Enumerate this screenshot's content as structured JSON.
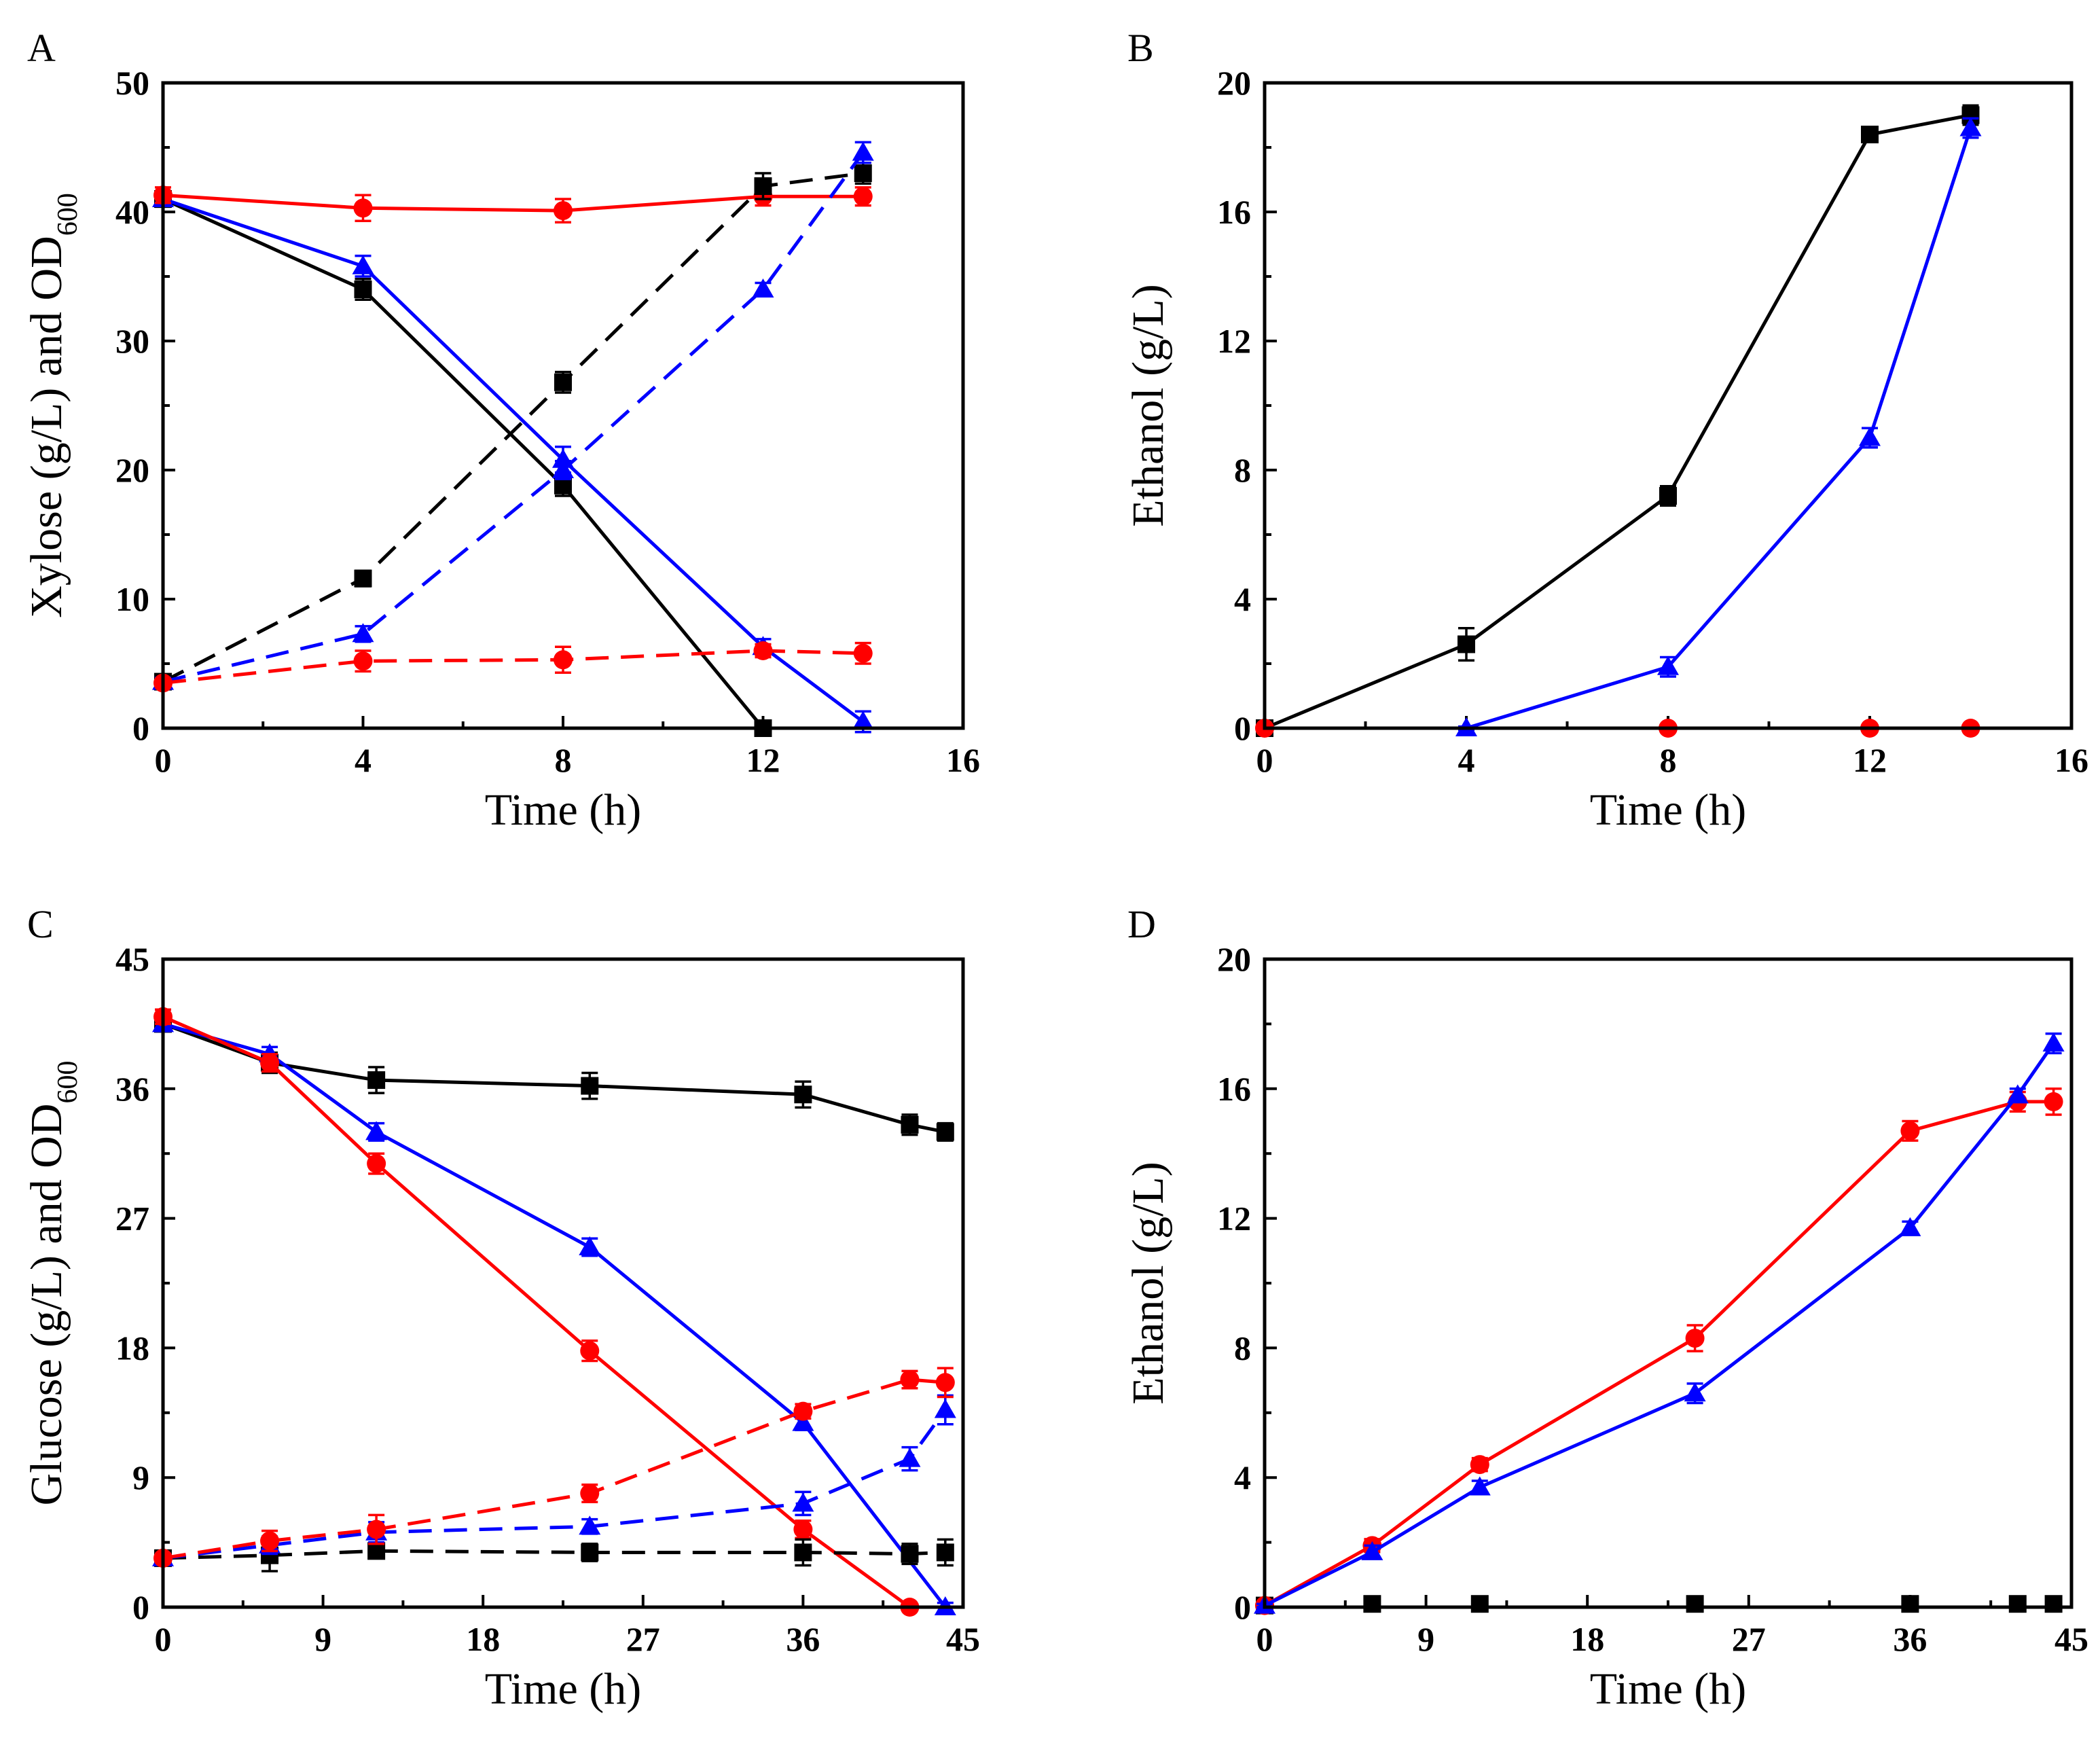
{
  "chart_data": [
    {
      "type": "line",
      "panel": "A",
      "title": "",
      "xlabel": "Time (h)",
      "ylabel": "Xylose (g/L) and OD",
      "ylabel_sub": "600",
      "xlim": [
        0,
        16
      ],
      "ylim": [
        0,
        50
      ],
      "xticks": [
        0,
        4,
        8,
        12,
        16
      ],
      "yticks": [
        0,
        10,
        20,
        30,
        40,
        50
      ],
      "series": [
        {
          "name": "black-xylose",
          "color": "#000000",
          "marker": "square",
          "dash": false,
          "x": [
            0,
            4,
            8,
            12
          ],
          "y": [
            41,
            34,
            18.8,
            0
          ],
          "err": [
            0.6,
            0.8,
            0.8,
            0.3
          ]
        },
        {
          "name": "blue-xylose",
          "color": "#0000ff",
          "marker": "triangle",
          "dash": false,
          "x": [
            0,
            4,
            8,
            12,
            14
          ],
          "y": [
            41,
            35.8,
            20.8,
            6.3,
            0.5
          ],
          "err": [
            0.5,
            0.8,
            1.0,
            0.6,
            0.8
          ]
        },
        {
          "name": "red-xylose",
          "color": "#ff0000",
          "marker": "circle",
          "dash": false,
          "x": [
            0,
            4,
            8,
            12,
            14
          ],
          "y": [
            41.3,
            40.3,
            40.1,
            41.2,
            41.2
          ],
          "err": [
            0.6,
            1.0,
            0.9,
            0.7,
            0.7
          ]
        },
        {
          "name": "black-od",
          "color": "#000000",
          "marker": "square",
          "dash": true,
          "x": [
            0,
            4,
            8,
            12,
            14
          ],
          "y": [
            3.6,
            11.6,
            26.8,
            42,
            43
          ],
          "err": [
            0.3,
            0.6,
            0.8,
            1.0,
            0.8
          ]
        },
        {
          "name": "blue-od",
          "color": "#0000ff",
          "marker": "triangle",
          "dash": true,
          "x": [
            0,
            4,
            8,
            12,
            14
          ],
          "y": [
            3.6,
            7.3,
            20,
            34,
            44.6
          ],
          "err": [
            0.3,
            0.6,
            0.7,
            0.5,
            0.8
          ]
        },
        {
          "name": "red-od",
          "color": "#ff0000",
          "marker": "circle",
          "dash": true,
          "x": [
            0,
            4,
            8,
            12,
            14
          ],
          "y": [
            3.5,
            5.2,
            5.3,
            6,
            5.8
          ],
          "err": [
            0.3,
            0.8,
            1.0,
            0.5,
            0.8
          ]
        }
      ]
    },
    {
      "type": "line",
      "panel": "B",
      "title": "",
      "xlabel": "Time (h)",
      "ylabel": "Ethanol (g/L)",
      "ylabel_sub": "",
      "xlim": [
        0,
        16
      ],
      "ylim": [
        0,
        20
      ],
      "xticks": [
        0,
        4,
        8,
        12,
        16
      ],
      "yticks": [
        0,
        4,
        8,
        12,
        16,
        20
      ],
      "series": [
        {
          "name": "black-ethanol",
          "color": "#000000",
          "marker": "square",
          "dash": false,
          "x": [
            0,
            4,
            8,
            12,
            14
          ],
          "y": [
            0,
            2.6,
            7.2,
            18.4,
            19
          ],
          "err": [
            0.05,
            0.5,
            0.3,
            0.2,
            0.3
          ]
        },
        {
          "name": "blue-ethanol",
          "color": "#0000ff",
          "marker": "triangle",
          "dash": false,
          "x": [
            4,
            8,
            12,
            14
          ],
          "y": [
            0,
            1.9,
            9,
            18.6
          ],
          "err": [
            0.05,
            0.3,
            0.3,
            0.3
          ]
        },
        {
          "name": "red-ethanol",
          "color": "#ff0000",
          "marker": "circle",
          "dash": false,
          "line": false,
          "x": [
            0,
            8,
            12,
            14
          ],
          "y": [
            0,
            0,
            0,
            0
          ],
          "err": [
            0,
            0,
            0,
            0
          ]
        }
      ]
    },
    {
      "type": "line",
      "panel": "C",
      "title": "",
      "xlabel": "Time (h)",
      "ylabel": "Glucose (g/L) and OD",
      "ylabel_sub": "600",
      "xlim": [
        0,
        45
      ],
      "ylim": [
        0,
        45
      ],
      "xticks": [
        0,
        9,
        18,
        27,
        36,
        45
      ],
      "yticks": [
        0,
        9,
        18,
        27,
        36,
        45
      ],
      "series": [
        {
          "name": "black-glucose",
          "color": "#000000",
          "marker": "square",
          "dash": false,
          "x": [
            0,
            6,
            12,
            24,
            36,
            42,
            44
          ],
          "y": [
            40.5,
            37.8,
            36.6,
            36.2,
            35.6,
            33.5,
            33
          ],
          "err": [
            0.5,
            0.7,
            0.9,
            0.9,
            0.9,
            0.7,
            0.6
          ]
        },
        {
          "name": "blue-glucose",
          "color": "#0000ff",
          "marker": "triangle",
          "dash": false,
          "x": [
            0,
            6,
            12,
            24,
            36,
            44
          ],
          "y": [
            40.5,
            38.4,
            33,
            25,
            12.8,
            0
          ],
          "err": [
            0.5,
            0.5,
            0.6,
            0.6,
            0.5,
            0.3
          ]
        },
        {
          "name": "red-glucose",
          "color": "#ff0000",
          "marker": "circle",
          "dash": false,
          "x": [
            0,
            6,
            12,
            24,
            36,
            42
          ],
          "y": [
            41,
            37.8,
            30.8,
            17.8,
            5.4,
            0
          ],
          "err": [
            0.5,
            0.6,
            0.7,
            0.7,
            0.6,
            0.2
          ]
        },
        {
          "name": "black-od",
          "color": "#000000",
          "marker": "square",
          "dash": true,
          "x": [
            0,
            6,
            12,
            24,
            36,
            42,
            44
          ],
          "y": [
            3.4,
            3.6,
            3.9,
            3.8,
            3.8,
            3.7,
            3.8
          ],
          "err": [
            0.3,
            1.1,
            0.5,
            0.6,
            0.9,
            0.7,
            0.9
          ]
        },
        {
          "name": "blue-od",
          "color": "#0000ff",
          "marker": "triangle",
          "dash": true,
          "x": [
            0,
            6,
            12,
            24,
            36,
            42,
            44
          ],
          "y": [
            3.4,
            4.3,
            5.2,
            5.6,
            7.2,
            10.3,
            13.7
          ],
          "err": [
            0.3,
            0.6,
            0.7,
            0.5,
            0.8,
            0.8,
            1.0
          ]
        },
        {
          "name": "red-od",
          "color": "#ff0000",
          "marker": "circle",
          "dash": true,
          "x": [
            0,
            6,
            12,
            24,
            36,
            42,
            44
          ],
          "y": [
            3.4,
            4.6,
            5.4,
            7.9,
            13.6,
            15.8,
            15.6
          ],
          "err": [
            0.3,
            0.7,
            1.0,
            0.6,
            0.5,
            0.6,
            1.0
          ]
        }
      ]
    },
    {
      "type": "line",
      "panel": "D",
      "title": "",
      "xlabel": "Time (h)",
      "ylabel": "Ethanol (g/L)",
      "ylabel_sub": "",
      "xlim": [
        0,
        45
      ],
      "ylim": [
        0,
        20
      ],
      "xticks": [
        0,
        9,
        18,
        27,
        36,
        45
      ],
      "yticks": [
        0,
        4,
        8,
        12,
        16,
        20
      ],
      "series": [
        {
          "name": "black-ethanol",
          "color": "#000000",
          "marker": "square",
          "dash": false,
          "line": false,
          "x": [
            0,
            6,
            12,
            24,
            36,
            42,
            44
          ],
          "y": [
            0.05,
            0.1,
            0.1,
            0.1,
            0.1,
            0.1,
            0.1
          ],
          "err": [
            0,
            0,
            0,
            0,
            0,
            0,
            0
          ]
        },
        {
          "name": "red-ethanol",
          "color": "#ff0000",
          "marker": "circle",
          "dash": false,
          "x": [
            0,
            6,
            12,
            24,
            36,
            42,
            44
          ],
          "y": [
            0.05,
            1.9,
            4.4,
            8.3,
            14.7,
            15.6,
            15.6
          ],
          "err": [
            0.05,
            0.2,
            0.2,
            0.4,
            0.3,
            0.3,
            0.4
          ]
        },
        {
          "name": "blue-ethanol",
          "color": "#0000ff",
          "marker": "triangle",
          "dash": false,
          "x": [
            0,
            6,
            12,
            24,
            36,
            42,
            44
          ],
          "y": [
            0.05,
            1.7,
            3.7,
            6.6,
            11.7,
            15.8,
            17.4
          ],
          "err": [
            0.05,
            0.2,
            0.2,
            0.3,
            0.2,
            0.2,
            0.3
          ]
        }
      ]
    }
  ]
}
